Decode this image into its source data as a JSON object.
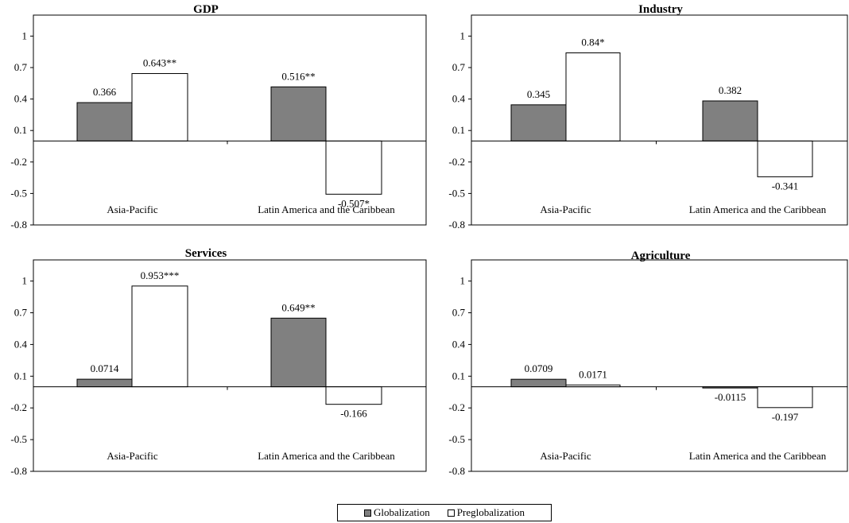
{
  "chart_data": [
    {
      "type": "bar",
      "title": "GDP",
      "categories": [
        "Asia-Pacific",
        "Latin America and the Caribbean"
      ],
      "series": [
        {
          "name": "Globalization",
          "values": [
            0.366,
            0.516
          ],
          "labels": [
            "0.366",
            "0.516**"
          ]
        },
        {
          "name": "Preglobalization",
          "values": [
            0.643,
            -0.507
          ],
          "labels": [
            "0.643**",
            "-0.507*"
          ]
        }
      ],
      "yticks": [
        "1",
        "0.7",
        "0.4",
        "0.1",
        "-0.2",
        "-0.5",
        "-0.8"
      ],
      "ylim": [
        -0.8,
        1.2
      ]
    },
    {
      "type": "bar",
      "title": "Industry",
      "categories": [
        "Asia-Pacific",
        "Latin America and the Caribbean"
      ],
      "series": [
        {
          "name": "Globalization",
          "values": [
            0.345,
            0.382
          ],
          "labels": [
            "0.345",
            "0.382"
          ]
        },
        {
          "name": "Preglobalization",
          "values": [
            0.84,
            -0.341
          ],
          "labels": [
            "0.84*",
            "-0.341"
          ]
        }
      ],
      "yticks": [
        "1",
        "0.7",
        "0.4",
        "0.1",
        "-0.2",
        "-0.5",
        "-0.8"
      ],
      "ylim": [
        -0.8,
        1.2
      ]
    },
    {
      "type": "bar",
      "title": "Services",
      "categories": [
        "Asia-Pacific",
        "Latin America and the Caribbean"
      ],
      "series": [
        {
          "name": "Globalization",
          "values": [
            0.0714,
            0.649
          ],
          "labels": [
            "0.0714",
            "0.649**"
          ]
        },
        {
          "name": "Preglobalization",
          "values": [
            0.953,
            -0.166
          ],
          "labels": [
            "0.953***",
            "-0.166"
          ]
        }
      ],
      "yticks": [
        "1",
        "0.7",
        "0.4",
        "0.1",
        "-0.2",
        "-0.5",
        "-0.8"
      ],
      "ylim": [
        -0.8,
        1.2
      ]
    },
    {
      "type": "bar",
      "title": "Agriculture",
      "categories": [
        "Asia-Pacific",
        "Latin America and the Caribbean"
      ],
      "series": [
        {
          "name": "Globalization",
          "values": [
            0.0709,
            -0.0115
          ],
          "labels": [
            "0.0709",
            "-0.0115"
          ]
        },
        {
          "name": "Preglobalization",
          "values": [
            0.0171,
            -0.197
          ],
          "labels": [
            "0.0171",
            "-0.197"
          ]
        }
      ],
      "yticks": [
        "1",
        "0.7",
        "0.4",
        "0.1",
        "-0.2",
        "-0.5",
        "-0.8"
      ],
      "ylim": [
        -0.8,
        1.2
      ]
    }
  ],
  "legend": {
    "globalization": "Globalization",
    "preglobalization": "Preglobalization"
  },
  "colors": {
    "globalization": "#808080",
    "preglobalization": "#ffffff",
    "stroke": "#000000"
  }
}
